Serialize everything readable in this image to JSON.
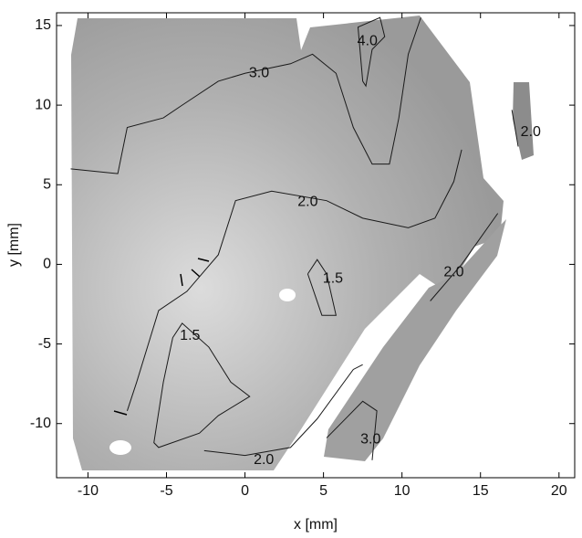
{
  "chart_data": {
    "type": "contour",
    "xlabel": "x [mm]",
    "ylabel": "y [mm]",
    "xlim": [
      -12,
      21
    ],
    "ylim": [
      -13.4,
      15.8
    ],
    "xticks": [
      -10,
      -5,
      0,
      5,
      10,
      15,
      20
    ],
    "yticks": [
      -10,
      -5,
      0,
      5,
      10,
      15
    ],
    "color": "#1a1a1a",
    "contours": [
      {
        "level": {
          "value": 3,
          "label": "3.0"
        },
        "label_x": 0.9,
        "label_y": 12.0,
        "x": [
          -11.1,
          -8.1,
          -7.5,
          -5.2,
          -4.0,
          -1.7,
          0,
          2.9,
          4.3,
          5.8,
          6.9,
          8.1,
          9.2,
          9.8,
          10.4,
          11.2
        ],
        "y": [
          6.0,
          5.7,
          8.6,
          9.2,
          10.0,
          11.5,
          12.0,
          12.6,
          13.2,
          12.0,
          8.6,
          6.3,
          6.3,
          9.2,
          13.2,
          15.5
        ]
      },
      {
        "level": {
          "value": 4,
          "label": "4.0"
        },
        "label_x": 7.8,
        "label_y": 14.0,
        "x": [
          7.5,
          7.2,
          8.6,
          8.9,
          8.1,
          7.7,
          7.5
        ],
        "y": [
          11.5,
          14.9,
          15.5,
          14.3,
          13.5,
          11.2,
          11.5
        ]
      },
      {
        "level": {
          "value": 2,
          "label": "2.0"
        },
        "label_x": 4.0,
        "label_y": 3.9,
        "x": [
          -7.5,
          -6.9,
          -5.5,
          -3.7,
          -1.7,
          -0.6,
          1.7,
          5.2,
          7.5,
          10.4,
          12.1,
          13.3,
          13.8
        ],
        "y": [
          -9.2,
          -7.4,
          -2.9,
          -1.7,
          0.6,
          4.0,
          4.6,
          4.0,
          2.9,
          2.3,
          2.9,
          5.2,
          7.2
        ]
      },
      {
        "level": {
          "value": 1.5,
          "label": "1.5"
        },
        "label_x": 5.6,
        "label_y": -0.9,
        "x": [
          4.0,
          4.6,
          5.2,
          5.8,
          4.9,
          4.0
        ],
        "y": [
          -0.6,
          0.3,
          -0.6,
          -3.2,
          -3.2,
          -0.6
        ]
      },
      {
        "level": {
          "value": 1.5,
          "label": "1.5"
        },
        "label_x": -3.5,
        "label_y": -4.5,
        "x": [
          -4.6,
          -5.2,
          -5.8,
          -5.5,
          -2.9,
          -1.7,
          0.3,
          -0.9,
          -2.3,
          -4.0,
          -4.6
        ],
        "y": [
          -4.6,
          -7.4,
          -11.2,
          -11.5,
          -10.6,
          -9.5,
          -8.3,
          -7.4,
          -5.2,
          -3.7,
          -4.6
        ]
      },
      {
        "level": {
          "value": 2,
          "label": "2.0"
        },
        "label_x": 1.2,
        "label_y": -12.3,
        "x": [
          -2.6,
          0,
          2.9,
          4.6,
          6.9,
          7.5
        ],
        "y": [
          -11.7,
          -12.0,
          -11.5,
          -9.7,
          -6.6,
          -6.3
        ]
      },
      {
        "level": {
          "value": 3,
          "label": "3.0"
        },
        "label_x": 8.0,
        "label_y": -11.0,
        "x": [
          5.2,
          7.5,
          8.4,
          8.1
        ],
        "y": [
          -10.9,
          -8.6,
          -9.2,
          -12.3
        ]
      },
      {
        "level": {
          "value": 2,
          "label": "2.0"
        },
        "label_x": 13.3,
        "label_y": -0.5,
        "x": [
          11.8,
          13.8,
          16.1
        ],
        "y": [
          -2.3,
          0,
          3.2
        ]
      },
      {
        "level": {
          "value": 2,
          "label": "2.0"
        },
        "label_x": 18.2,
        "label_y": 8.3,
        "x": [
          17.0,
          17.4
        ],
        "y": [
          9.7,
          7.4
        ]
      }
    ]
  }
}
